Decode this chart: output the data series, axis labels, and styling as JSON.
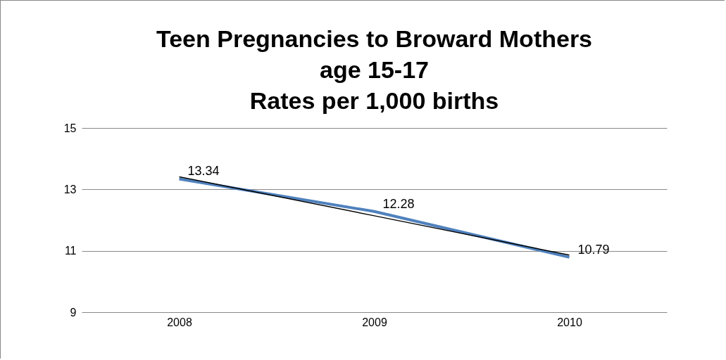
{
  "chart_data": {
    "type": "line",
    "title": [
      "Teen Pregnancies to Broward Mothers",
      "age 15-17",
      "Rates per 1,000 births"
    ],
    "categories": [
      "2008",
      "2009",
      "2010"
    ],
    "series": [
      {
        "color": "#4f81bd",
        "values": [
          13.34,
          12.28,
          10.79
        ],
        "value_labels": [
          "13.34",
          "12.28",
          "10.79"
        ]
      },
      {
        "type": "line",
        "color": "#000000",
        "values": [
          13.41,
          12.14,
          10.86
        ]
      }
    ],
    "ylim": [
      9,
      15
    ],
    "yticks": [
      9,
      11,
      13,
      15
    ],
    "grid": "y",
    "marker": "none"
  }
}
